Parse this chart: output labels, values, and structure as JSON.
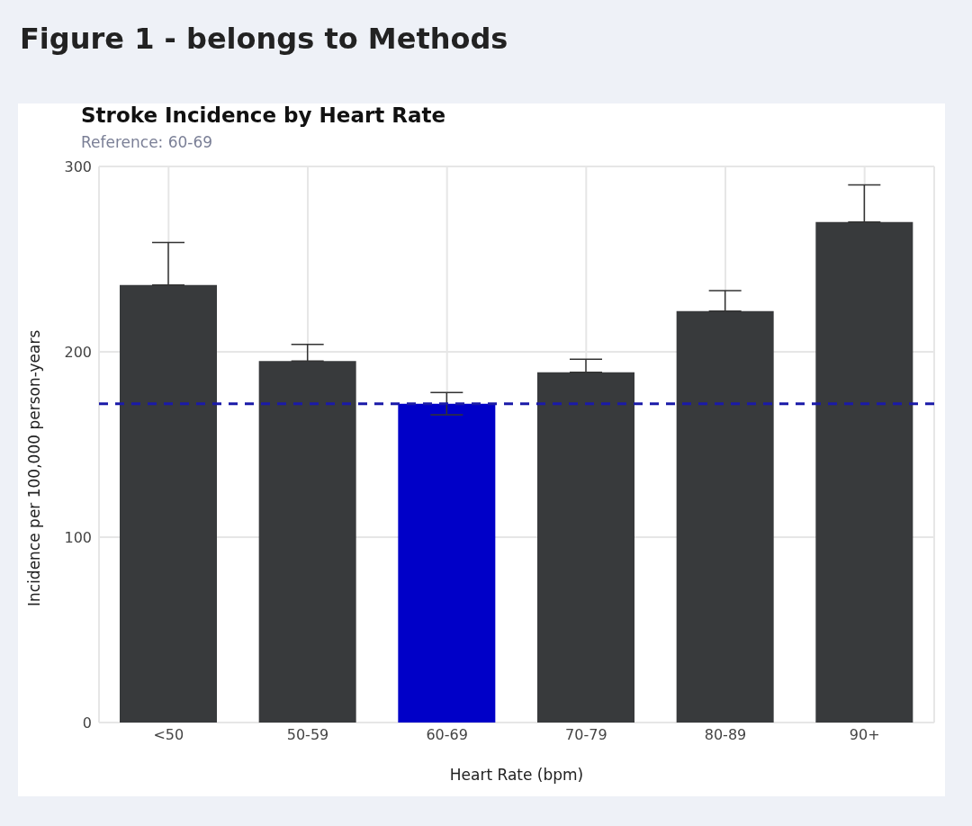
{
  "chart_data": {
    "type": "bar",
    "title": "Stroke Incidence by Heart Rate",
    "subtitle": "Reference: 60-69",
    "xlabel": "Heart Rate (bpm)",
    "ylabel": "Incidence per 100,000 person-years",
    "annotations": [
      "Figure 1 - belongs to Methods"
    ],
    "categories": [
      "<50",
      "50-59",
      "60-69",
      "70-79",
      "80-89",
      "90+"
    ],
    "values": [
      236,
      195,
      172,
      189,
      222,
      270
    ],
    "colors": [
      "#383a3c",
      "#383a3c",
      "#0000c8",
      "#383a3c",
      "#383a3c",
      "#383a3c"
    ],
    "errors": [
      [
        236,
        259
      ],
      [
        195,
        204
      ],
      [
        166,
        178
      ],
      [
        189,
        196
      ],
      [
        222,
        233
      ],
      [
        270,
        290
      ]
    ],
    "ylim": [
      0,
      300
    ],
    "yticks": [
      0,
      100,
      200,
      300
    ],
    "grid": true,
    "ref_lines": [
      {
        "axis": "y",
        "value": 172,
        "color": "#1a1aa8",
        "line_style": "dashed"
      }
    ]
  }
}
